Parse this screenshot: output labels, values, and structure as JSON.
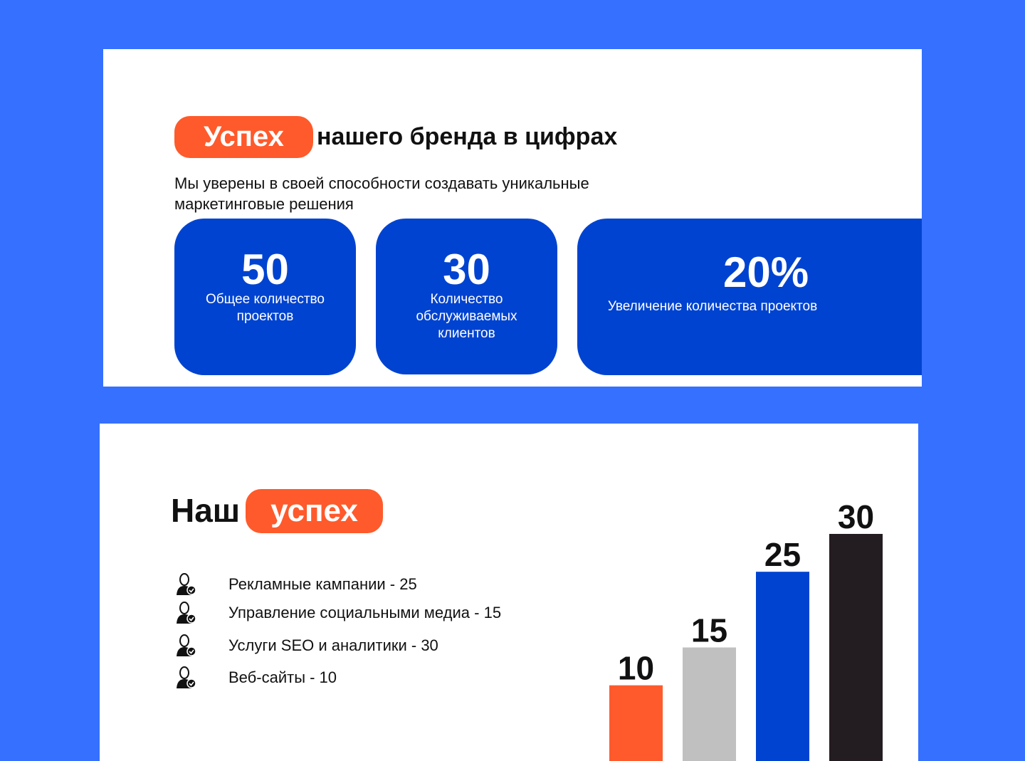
{
  "top": {
    "title_highlight": "Успех",
    "title_rest": "нашего бренда в цифрах",
    "subtitle": [
      "Мы уверены  в своей способности создавать уникальные",
      "маркетинговые решения"
    ],
    "stats": [
      {
        "value": "50",
        "label": "Общее количество проектов"
      },
      {
        "value": "30",
        "label": "Количество обслуживаемых клиентов"
      },
      {
        "value": "20%",
        "label": "Увеличение количества проектов"
      }
    ]
  },
  "bottom": {
    "title": "Наш",
    "title_highlight": "успех",
    "items": [
      "Рекламные кампании - 25",
      "Управление социальными медиа - 15",
      "Услуги SEO и аналитики - 30",
      "Веб-сайты - 10"
    ]
  },
  "chart_data": {
    "type": "bar",
    "values": [
      10,
      15,
      25,
      30
    ],
    "colors": [
      "#ff5a2b",
      "#c0c0c0",
      "#0043d0",
      "#231c21"
    ]
  }
}
